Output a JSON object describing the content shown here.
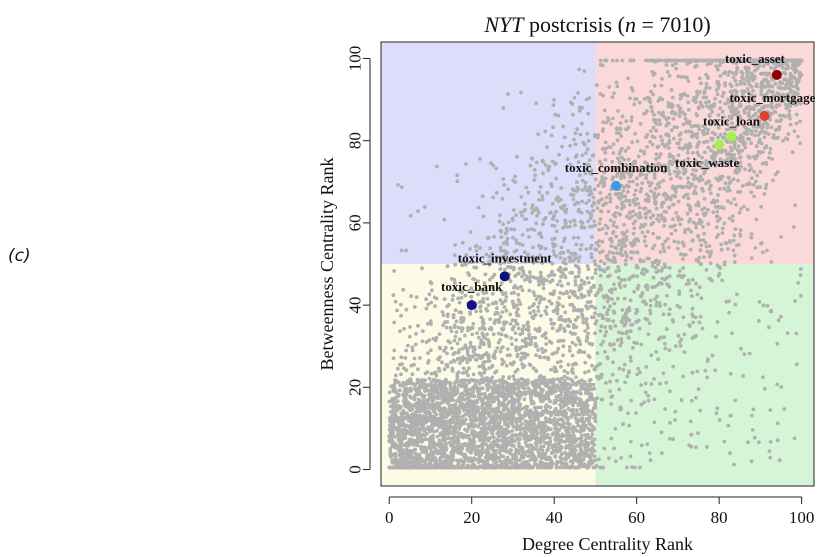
{
  "panel_label": "(c)",
  "chart_data": {
    "type": "scatter",
    "title_parts": [
      {
        "text": "NYT",
        "italic": true
      },
      {
        "text": " postcrisis ",
        "italic": false
      },
      {
        "text": "(",
        "italic": false
      },
      {
        "text": "n",
        "italic": true
      },
      {
        "text": " = 7010)",
        "italic": false
      }
    ],
    "xlabel": "Degree Centrality Rank",
    "ylabel": "Betweenness Centrality Rank",
    "xlim": [
      -2,
      103
    ],
    "ylim": [
      -4,
      104
    ],
    "xticks": [
      0,
      20,
      40,
      60,
      80,
      100
    ],
    "yticks": [
      0,
      20,
      40,
      60,
      80,
      100
    ],
    "n_background_points": 7010,
    "background_point_color": "#b0b0b0",
    "quadrants": [
      {
        "x": [
          -2,
          50
        ],
        "y": [
          50,
          104
        ],
        "color": "#dcdcfb"
      },
      {
        "x": [
          50,
          103
        ],
        "y": [
          50,
          104
        ],
        "color": "#fbd9d9"
      },
      {
        "x": [
          -2,
          50
        ],
        "y": [
          -4,
          50
        ],
        "color": "#fcfbe6"
      },
      {
        "x": [
          50,
          103
        ],
        "y": [
          -4,
          50
        ],
        "color": "#d6f5d6"
      }
    ],
    "highlights": [
      {
        "label": "toxic_asset",
        "x": 94,
        "y": 96,
        "color": "#8b0000",
        "label_anchor": "end",
        "label_dx": 8,
        "label_dy": -12
      },
      {
        "label": "toxic_mortgage",
        "x": 91,
        "y": 86,
        "color": "#e0402a",
        "label_anchor": "middle",
        "label_dx": 8,
        "label_dy": -14
      },
      {
        "label": "toxic_loan",
        "x": 83,
        "y": 81,
        "color": "#a6f04d",
        "label_anchor": "middle",
        "label_dx": 0,
        "label_dy": -11
      },
      {
        "label": "toxic_waste",
        "x": 80,
        "y": 79,
        "color": "#a6f04d",
        "label_anchor": "middle",
        "label_dx": -12,
        "label_dy": 22
      },
      {
        "label": "toxic_combination",
        "x": 55,
        "y": 69,
        "color": "#3a9ae8",
        "label_anchor": "middle",
        "label_dx": 0,
        "label_dy": -14
      },
      {
        "label": "toxic_investment",
        "x": 28,
        "y": 47,
        "color": "#101080",
        "label_anchor": "middle",
        "label_dx": 0,
        "label_dy": -14
      },
      {
        "label": "toxic_bank",
        "x": 20,
        "y": 40,
        "color": "#101080",
        "label_anchor": "middle",
        "label_dx": 0,
        "label_dy": -14
      }
    ]
  }
}
